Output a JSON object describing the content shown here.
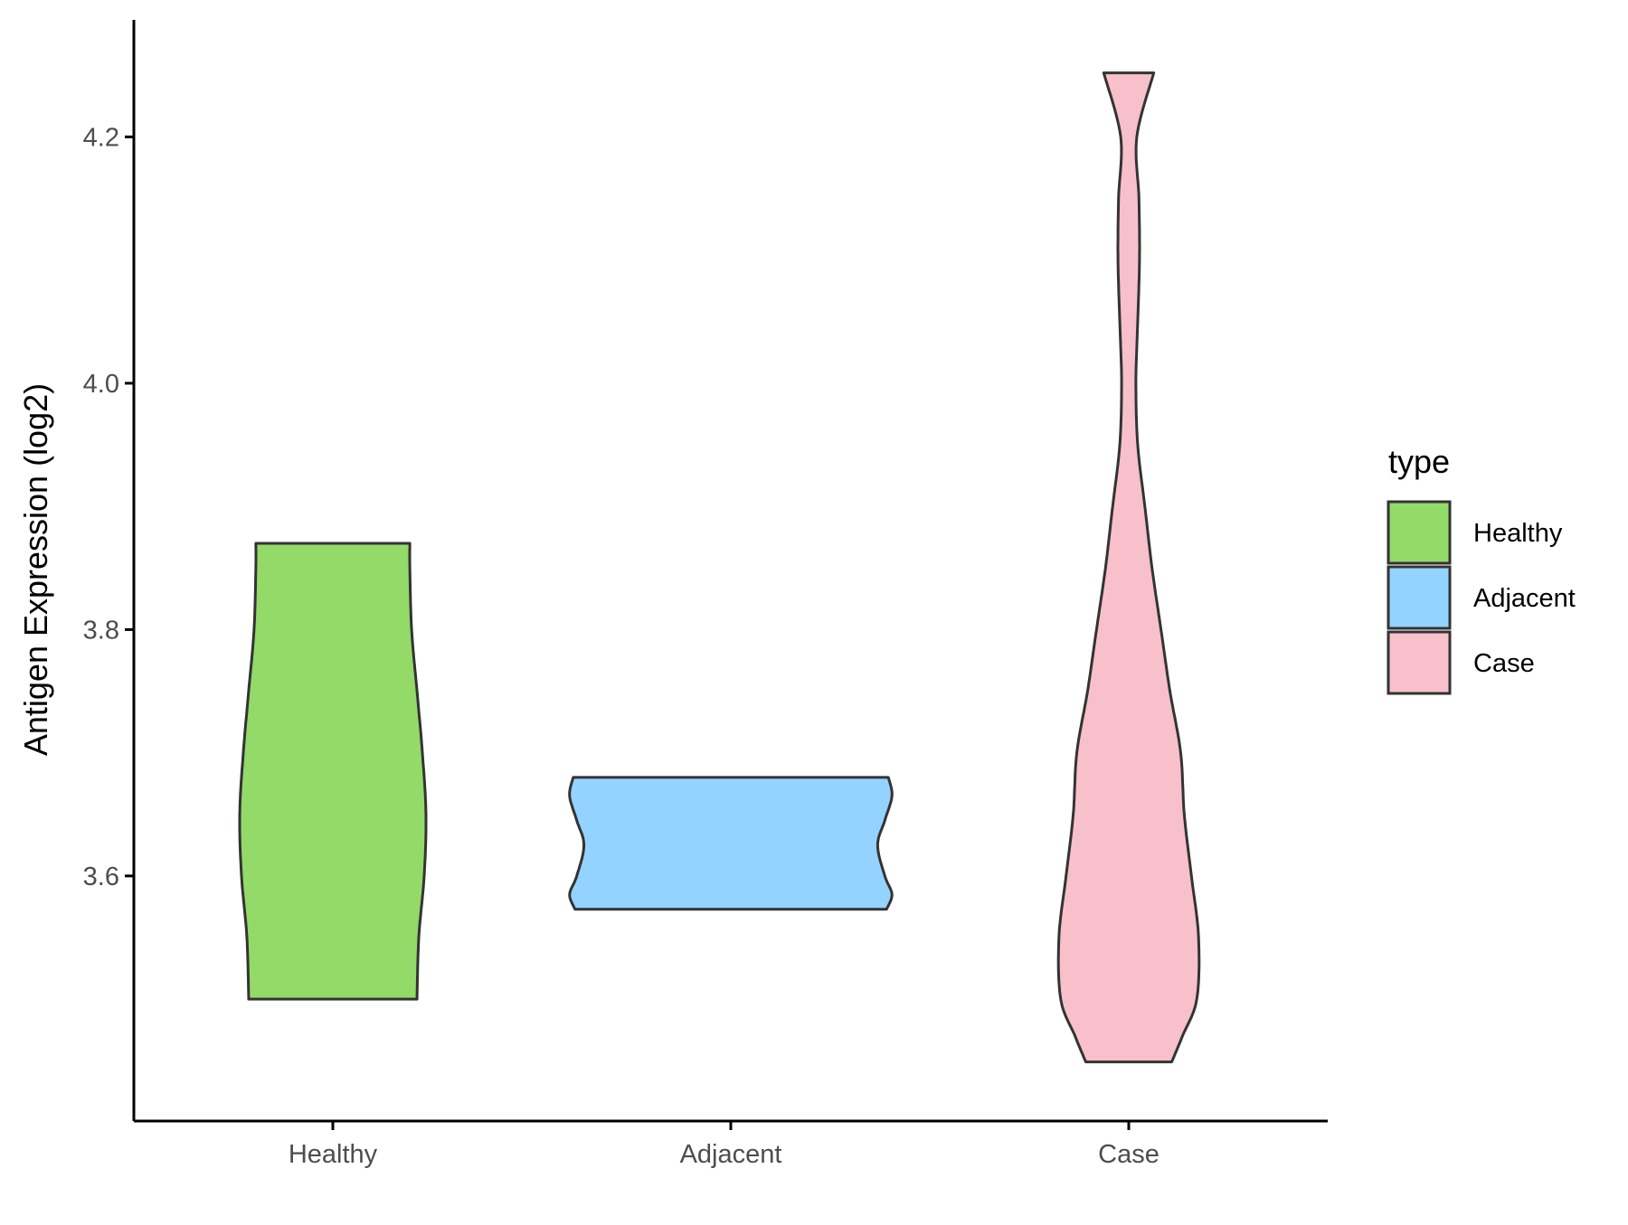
{
  "chart_data": {
    "type": "violin",
    "xlabel": "",
    "ylabel": "Antigen Expression (log2)",
    "yticks": [
      3.6,
      3.8,
      4.0,
      4.2
    ],
    "ytick_labels": [
      "3.6",
      "3.8",
      "4.0",
      "4.2"
    ],
    "categories": [
      "Healthy",
      "Adjacent",
      "Case"
    ],
    "grid": false,
    "legend": {
      "title": "type",
      "position": "right",
      "entries": [
        "Healthy",
        "Adjacent",
        "Case"
      ]
    },
    "series": [
      {
        "category": "Healthy",
        "color": "#93DA69",
        "min": 3.5,
        "max": 3.87,
        "density_profile": [
          [
            3.5,
            0.47
          ],
          [
            3.55,
            0.48
          ],
          [
            3.6,
            0.51
          ],
          [
            3.65,
            0.52
          ],
          [
            3.7,
            0.5
          ],
          [
            3.75,
            0.47
          ],
          [
            3.8,
            0.44
          ],
          [
            3.85,
            0.43
          ],
          [
            3.87,
            0.43
          ]
        ]
      },
      {
        "category": "Adjacent",
        "color": "#94D3FF",
        "min": 3.573,
        "max": 3.68,
        "density_profile": [
          [
            3.573,
            0.87
          ],
          [
            3.585,
            0.9
          ],
          [
            3.6,
            0.86
          ],
          [
            3.625,
            0.82
          ],
          [
            3.645,
            0.86
          ],
          [
            3.665,
            0.9
          ],
          [
            3.68,
            0.88
          ]
        ]
      },
      {
        "category": "Case",
        "color": "#F7C0CB",
        "min": 3.449,
        "max": 4.252,
        "density_profile": [
          [
            3.449,
            0.24
          ],
          [
            3.47,
            0.3
          ],
          [
            3.5,
            0.38
          ],
          [
            3.55,
            0.39
          ],
          [
            3.6,
            0.35
          ],
          [
            3.65,
            0.31
          ],
          [
            3.7,
            0.29
          ],
          [
            3.75,
            0.23
          ],
          [
            3.8,
            0.18
          ],
          [
            3.85,
            0.13
          ],
          [
            3.9,
            0.09
          ],
          [
            3.95,
            0.05
          ],
          [
            4.0,
            0.04
          ],
          [
            4.05,
            0.05
          ],
          [
            4.1,
            0.06
          ],
          [
            4.15,
            0.057
          ],
          [
            4.2,
            0.045
          ],
          [
            4.252,
            0.14
          ]
        ]
      }
    ]
  }
}
